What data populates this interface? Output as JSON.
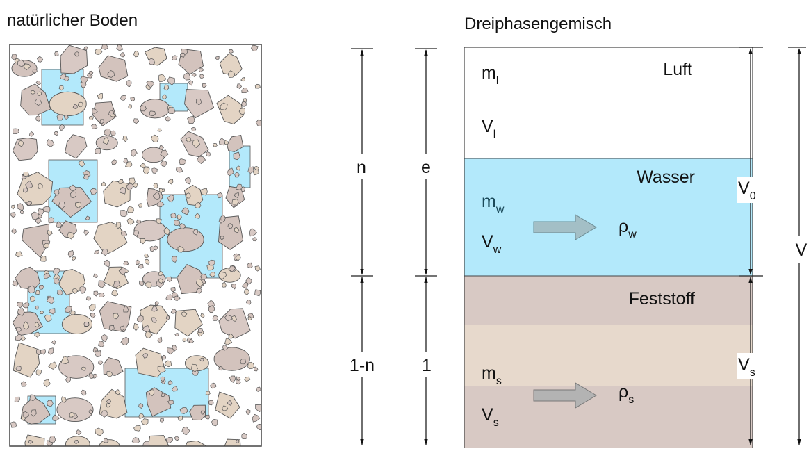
{
  "left": {
    "title": "natürlicher Boden"
  },
  "right": {
    "title": "Dreiphasengemisch",
    "phases": [
      {
        "name": "Luft",
        "mass": {
          "symbol": "m",
          "sub": "l"
        },
        "volume": {
          "symbol": "V",
          "sub": "l"
        }
      },
      {
        "name": "Wasser",
        "mass": {
          "symbol": "m",
          "sub": "w"
        },
        "volume": {
          "symbol": "V",
          "sub": "w"
        },
        "density": {
          "symbol": "ρ",
          "sub": "w"
        }
      },
      {
        "name": "Feststoff",
        "mass": {
          "symbol": "m",
          "sub": "s"
        },
        "volume": {
          "symbol": "V",
          "sub": "s"
        },
        "density": {
          "symbol": "ρ",
          "sub": "s"
        }
      }
    ],
    "dimensions": {
      "porosity": "n",
      "void_ratio": "e",
      "solid_fraction": "1-n",
      "solid_ratio": "1",
      "pore_volume": {
        "symbol": "V",
        "sub": "0"
      },
      "total_volume": "V",
      "solid_volume": {
        "symbol": "V",
        "sub": "s"
      }
    }
  }
}
